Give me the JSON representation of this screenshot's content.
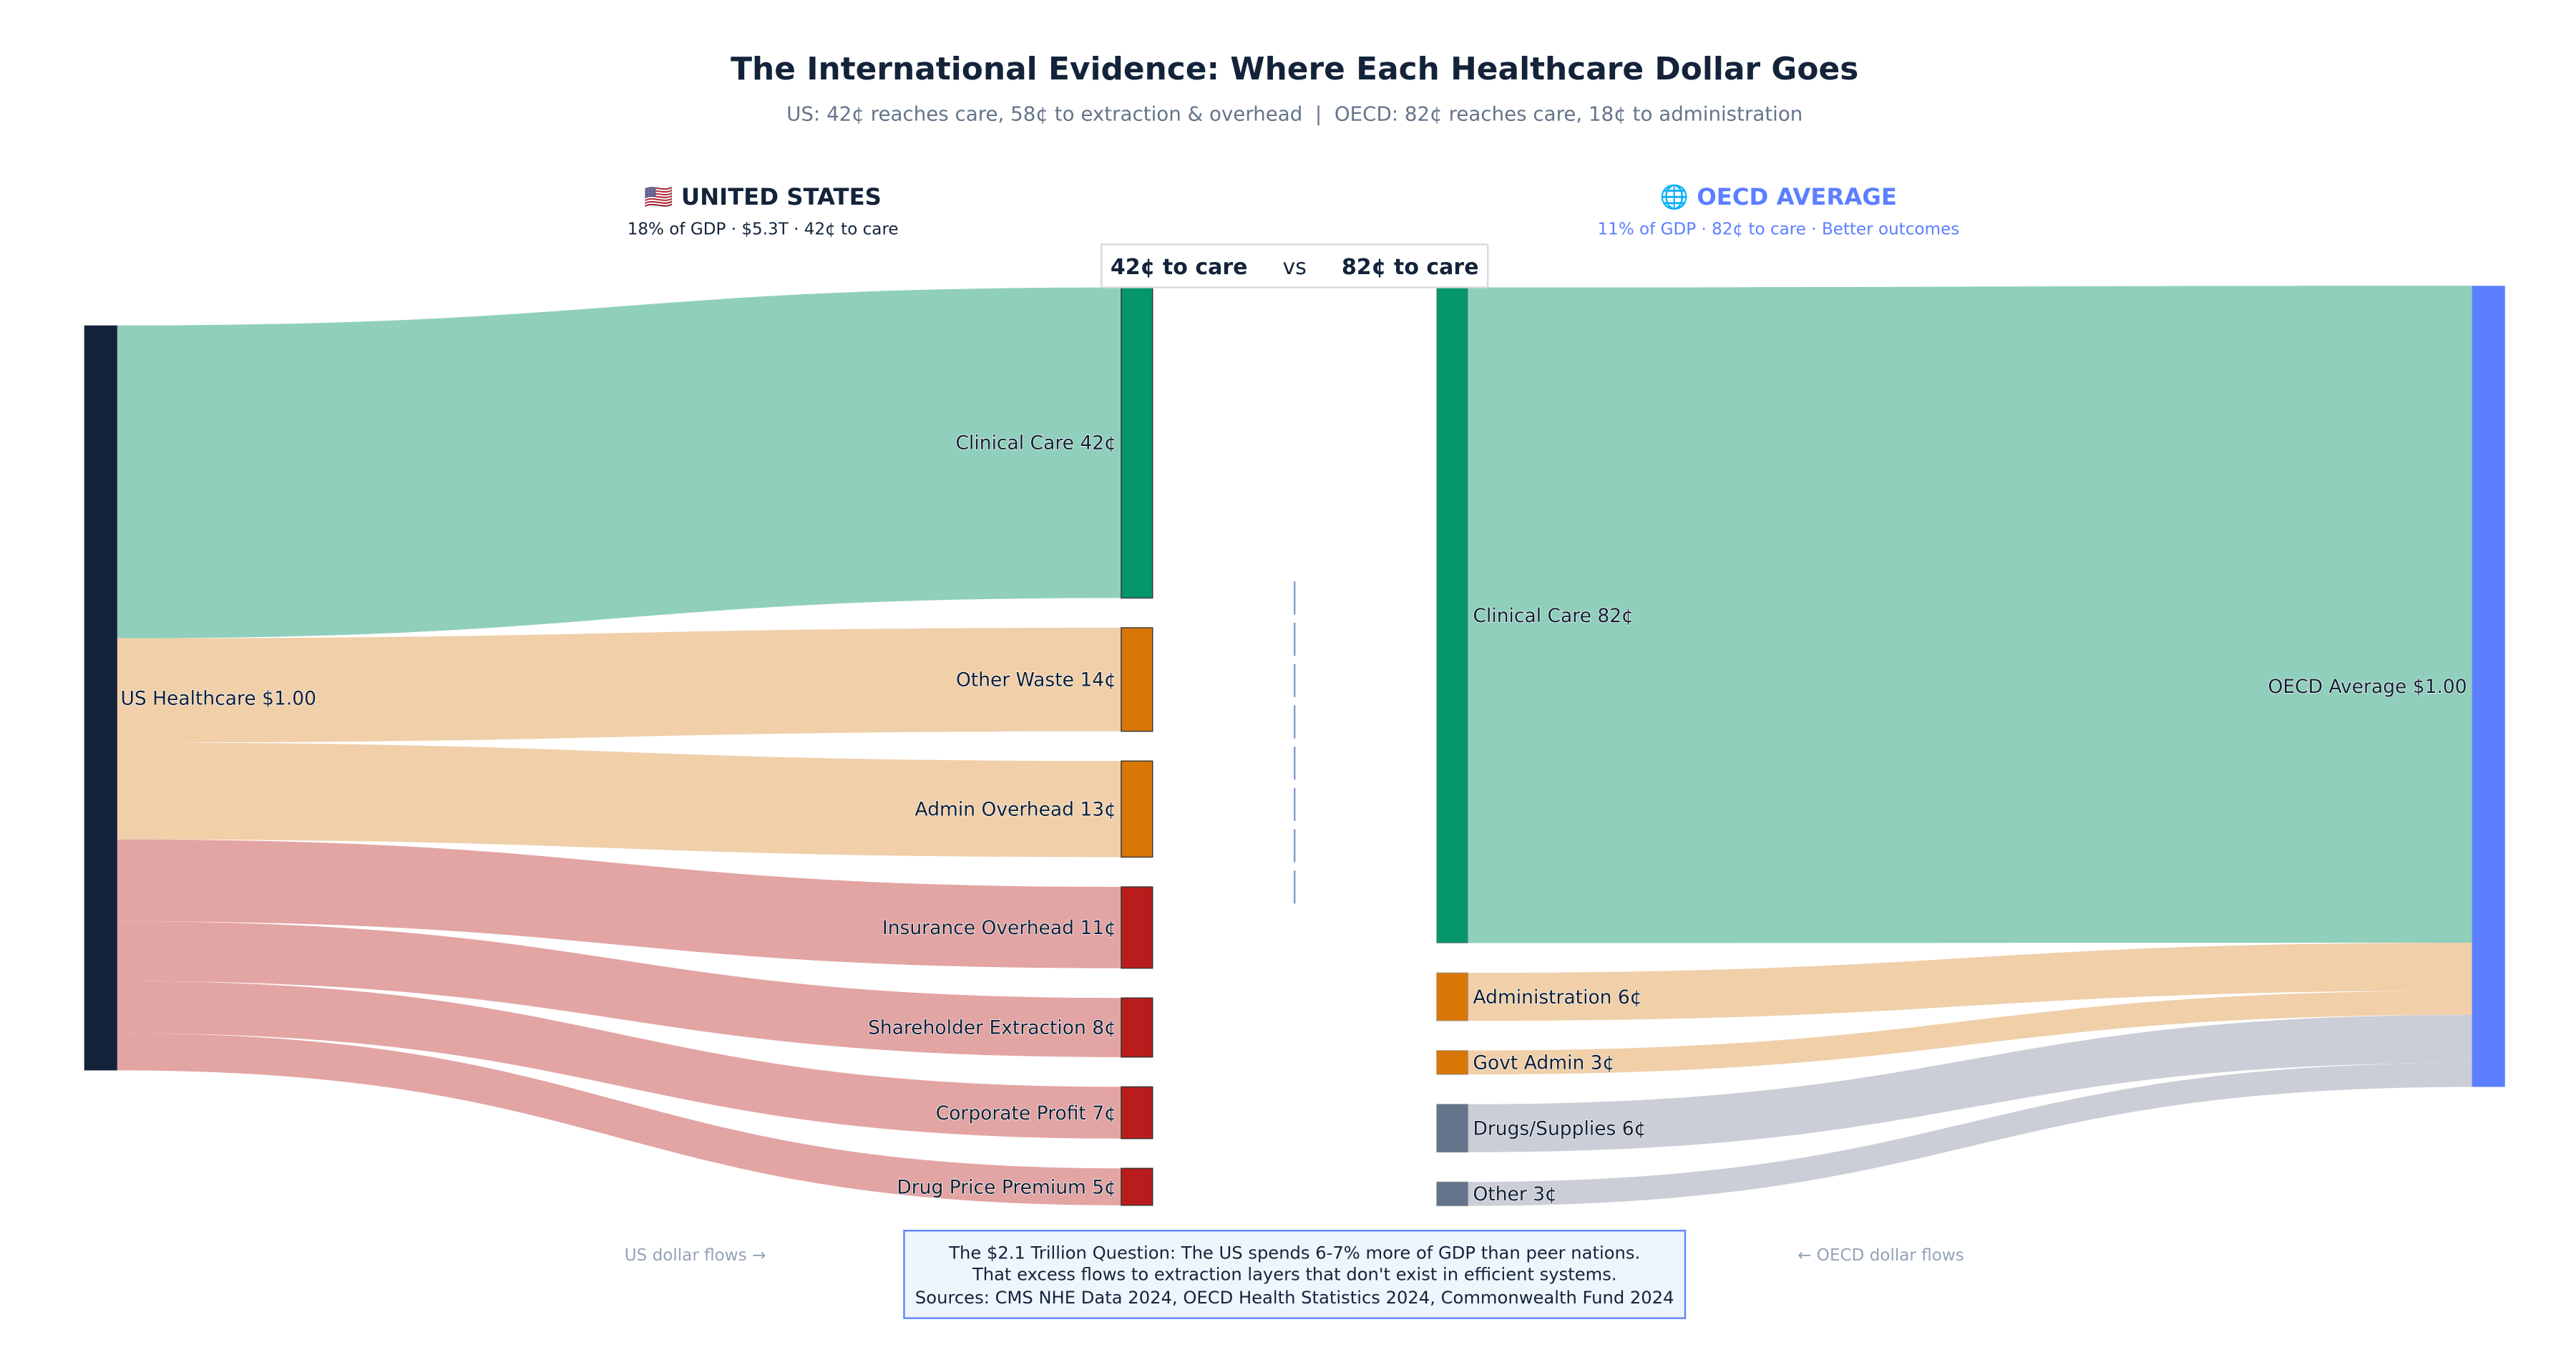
{
  "title": "The International Evidence: Where Each Healthcare Dollar Goes",
  "subtitle": "US: 42¢ reaches care, 58¢ to extraction & overhead  |  OECD: 82¢ reaches care, 18¢ to administration",
  "us_header": {
    "title": "🇺🇸 UNITED STATES",
    "sub": "18% of GDP · $5.3T · 42¢ to care"
  },
  "oecd_header": {
    "title": "🌐 OECD AVERAGE",
    "sub": "11% of GDP · 82¢ to care · Better outcomes"
  },
  "comparison": {
    "left": "42¢ to care",
    "vs": "vs",
    "right": "82¢ to care"
  },
  "us": {
    "source": "US Healthcare $1.00",
    "flows": [
      {
        "label": "Clinical Care 42¢",
        "value": 42,
        "kind": "care"
      },
      {
        "label": "Other Waste 14¢",
        "value": 14,
        "kind": "overhead"
      },
      {
        "label": "Admin Overhead 13¢",
        "value": 13,
        "kind": "overhead"
      },
      {
        "label": "Insurance Overhead 11¢",
        "value": 11,
        "kind": "extraction"
      },
      {
        "label": "Shareholder Extraction 8¢",
        "value": 8,
        "kind": "extraction"
      },
      {
        "label": "Corporate Profit 7¢",
        "value": 7,
        "kind": "extraction"
      },
      {
        "label": "Drug Price Premium 5¢",
        "value": 5,
        "kind": "extraction"
      }
    ]
  },
  "oecd": {
    "source": "OECD Average $1.00",
    "flows": [
      {
        "label": "Clinical Care 82¢",
        "value": 82,
        "kind": "care"
      },
      {
        "label": "Administration 6¢",
        "value": 6,
        "kind": "overhead"
      },
      {
        "label": "Govt Admin 3¢",
        "value": 3,
        "kind": "overhead"
      },
      {
        "label": "Drugs/Supplies 6¢",
        "value": 6,
        "kind": "other"
      },
      {
        "label": "Other 3¢",
        "value": 3,
        "kind": "other"
      }
    ]
  },
  "footer": {
    "left": "US dollar flows →",
    "right": "← OECD dollar flows",
    "note_lines": [
      "The $2.1 Trillion Question: The US spends 6-7% more of GDP than peer nations.",
      "That excess flows to extraction layers that don't exist in efficient systems.",
      "Sources: CMS NHE Data 2024, OECD Health Statistics 2024, Commonwealth Fund 2024"
    ]
  },
  "colors": {
    "care_node": "#059669",
    "care_link": "#8fcfbb",
    "overhead_node": "#d97706",
    "overhead_link": "#f0cfa9",
    "extraction_node": "#b91c1c",
    "extraction_link": "#e3a4a4",
    "other_node": "#64748b",
    "other_link": "#cbced6",
    "us_node": "#13233a",
    "oecd_node": "#5b7fff"
  }
}
